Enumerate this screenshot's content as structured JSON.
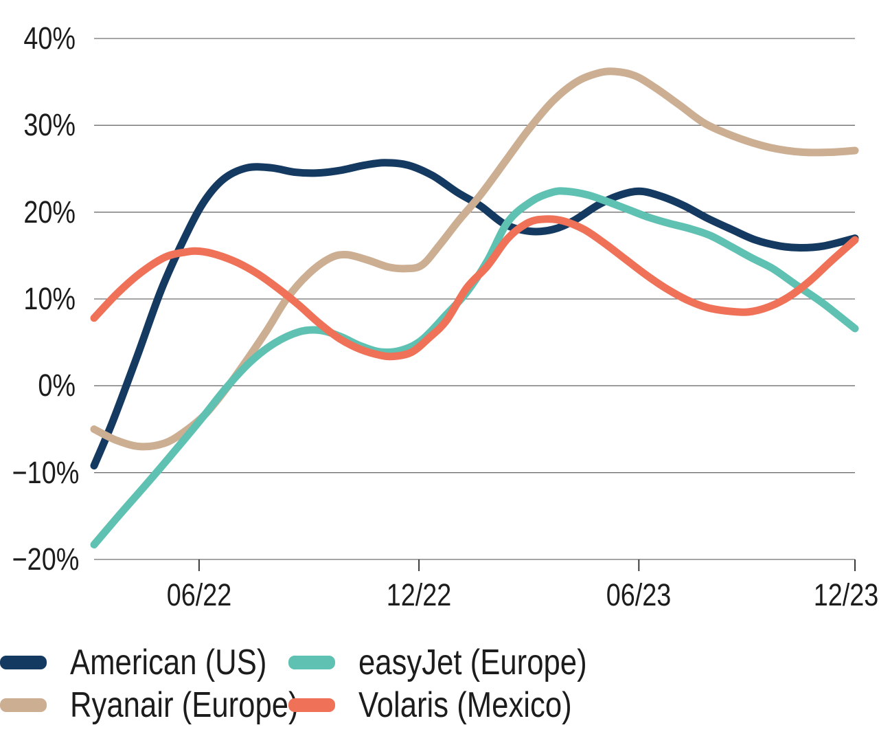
{
  "chart_data": {
    "type": "line",
    "title": "",
    "xlabel": "",
    "ylabel": "",
    "ylim": [
      -20,
      40
    ],
    "grid": "horizontal gridlines only",
    "legend_position": "bottom-left, two columns, two rows",
    "y_ticks": [
      {
        "label": "40%",
        "value": 40
      },
      {
        "label": "30%",
        "value": 30
      },
      {
        "label": "20%",
        "value": 20
      },
      {
        "label": "10%",
        "value": 10
      },
      {
        "label": "0%",
        "value": 0
      },
      {
        "label": "−10%",
        "value": -10
      },
      {
        "label": "−20%",
        "value": -20
      }
    ],
    "x_ticks": [
      {
        "label": "06/22",
        "pos": 0.138
      },
      {
        "label": "12/22",
        "pos": 0.427
      },
      {
        "label": "06/23",
        "pos": 0.716
      },
      {
        "label": "12/23",
        "pos": 1.0
      }
    ],
    "series": [
      {
        "name": "American (US)",
        "color": "#153a61",
        "points": [
          [
            0.0,
            -9.2
          ],
          [
            0.025,
            -4.0
          ],
          [
            0.057,
            3.5
          ],
          [
            0.088,
            11.0
          ],
          [
            0.116,
            16.5
          ],
          [
            0.143,
            21.0
          ],
          [
            0.17,
            23.8
          ],
          [
            0.201,
            25.1
          ],
          [
            0.233,
            25.1
          ],
          [
            0.264,
            24.6
          ],
          [
            0.292,
            24.5
          ],
          [
            0.323,
            24.8
          ],
          [
            0.355,
            25.4
          ],
          [
            0.382,
            25.7
          ],
          [
            0.413,
            25.4
          ],
          [
            0.445,
            24.2
          ],
          [
            0.477,
            22.3
          ],
          [
            0.508,
            20.7
          ],
          [
            0.54,
            18.6
          ],
          [
            0.573,
            17.8
          ],
          [
            0.603,
            18.0
          ],
          [
            0.63,
            19.0
          ],
          [
            0.662,
            20.8
          ],
          [
            0.689,
            21.9
          ],
          [
            0.716,
            22.4
          ],
          [
            0.743,
            21.9
          ],
          [
            0.774,
            20.8
          ],
          [
            0.806,
            19.3
          ],
          [
            0.838,
            18.0
          ],
          [
            0.869,
            16.8
          ],
          [
            0.901,
            16.1
          ],
          [
            0.928,
            15.9
          ],
          [
            0.959,
            16.1
          ],
          [
            1.0,
            17.0
          ]
        ]
      },
      {
        "name": "Ryanair (Europe)",
        "color": "#ccae92",
        "points": [
          [
            0.0,
            -5.0
          ],
          [
            0.03,
            -6.3
          ],
          [
            0.061,
            -7.0
          ],
          [
            0.093,
            -6.6
          ],
          [
            0.12,
            -5.2
          ],
          [
            0.147,
            -3.2
          ],
          [
            0.174,
            -0.3
          ],
          [
            0.201,
            3.0
          ],
          [
            0.228,
            6.5
          ],
          [
            0.253,
            10.0
          ],
          [
            0.282,
            12.9
          ],
          [
            0.31,
            14.7
          ],
          [
            0.332,
            15.1
          ],
          [
            0.359,
            14.5
          ],
          [
            0.386,
            13.7
          ],
          [
            0.409,
            13.5
          ],
          [
            0.431,
            13.9
          ],
          [
            0.454,
            16.2
          ],
          [
            0.479,
            19.0
          ],
          [
            0.508,
            22.0
          ],
          [
            0.54,
            25.8
          ],
          [
            0.571,
            29.5
          ],
          [
            0.603,
            32.8
          ],
          [
            0.634,
            35.0
          ],
          [
            0.662,
            36.0
          ],
          [
            0.684,
            36.2
          ],
          [
            0.711,
            35.7
          ],
          [
            0.738,
            34.3
          ],
          [
            0.77,
            32.3
          ],
          [
            0.801,
            30.3
          ],
          [
            0.833,
            29.0
          ],
          [
            0.865,
            28.0
          ],
          [
            0.896,
            27.3
          ],
          [
            0.932,
            26.9
          ],
          [
            0.968,
            26.9
          ],
          [
            1.0,
            27.1
          ]
        ]
      },
      {
        "name": "easyJet (Europe)",
        "color": "#5ec1b2",
        "points": [
          [
            0.0,
            -18.3
          ],
          [
            0.034,
            -14.8
          ],
          [
            0.07,
            -11.2
          ],
          [
            0.106,
            -7.5
          ],
          [
            0.143,
            -3.6
          ],
          [
            0.174,
            -0.2
          ],
          [
            0.206,
            2.8
          ],
          [
            0.237,
            4.9
          ],
          [
            0.269,
            6.2
          ],
          [
            0.296,
            6.4
          ],
          [
            0.323,
            5.7
          ],
          [
            0.35,
            4.6
          ],
          [
            0.377,
            3.9
          ],
          [
            0.404,
            4.1
          ],
          [
            0.431,
            5.3
          ],
          [
            0.463,
            8.2
          ],
          [
            0.49,
            10.8
          ],
          [
            0.517,
            14.4
          ],
          [
            0.544,
            18.9
          ],
          [
            0.576,
            21.3
          ],
          [
            0.603,
            22.3
          ],
          [
            0.621,
            22.4
          ],
          [
            0.648,
            22.0
          ],
          [
            0.675,
            21.2
          ],
          [
            0.702,
            20.3
          ],
          [
            0.729,
            19.4
          ],
          [
            0.756,
            18.7
          ],
          [
            0.783,
            18.1
          ],
          [
            0.81,
            17.3
          ],
          [
            0.838,
            16.0
          ],
          [
            0.865,
            14.7
          ],
          [
            0.892,
            13.5
          ],
          [
            0.923,
            11.6
          ],
          [
            0.955,
            9.7
          ],
          [
            0.977,
            8.2
          ],
          [
            1.0,
            6.6
          ]
        ]
      },
      {
        "name": "Volaris (Mexico)",
        "color": "#ee7158",
        "points": [
          [
            0.0,
            7.8
          ],
          [
            0.03,
            10.6
          ],
          [
            0.061,
            13.0
          ],
          [
            0.093,
            14.8
          ],
          [
            0.12,
            15.4
          ],
          [
            0.138,
            15.5
          ],
          [
            0.161,
            15.1
          ],
          [
            0.188,
            14.2
          ],
          [
            0.215,
            12.9
          ],
          [
            0.242,
            11.2
          ],
          [
            0.269,
            9.3
          ],
          [
            0.296,
            7.2
          ],
          [
            0.323,
            5.4
          ],
          [
            0.35,
            4.2
          ],
          [
            0.377,
            3.5
          ],
          [
            0.395,
            3.4
          ],
          [
            0.418,
            3.9
          ],
          [
            0.44,
            5.5
          ],
          [
            0.463,
            7.5
          ],
          [
            0.49,
            11.3
          ],
          [
            0.517,
            13.8
          ],
          [
            0.544,
            17.0
          ],
          [
            0.571,
            18.8
          ],
          [
            0.594,
            19.2
          ],
          [
            0.616,
            19.0
          ],
          [
            0.644,
            18.0
          ],
          [
            0.671,
            16.4
          ],
          [
            0.698,
            14.6
          ],
          [
            0.725,
            12.8
          ],
          [
            0.752,
            11.2
          ],
          [
            0.779,
            9.9
          ],
          [
            0.806,
            9.0
          ],
          [
            0.833,
            8.6
          ],
          [
            0.86,
            8.5
          ],
          [
            0.887,
            9.1
          ],
          [
            0.914,
            10.3
          ],
          [
            0.941,
            12.1
          ],
          [
            0.968,
            14.3
          ],
          [
            1.0,
            16.8
          ]
        ]
      }
    ]
  },
  "legend": {
    "items": [
      {
        "label": "American (US)",
        "color": "#153a61",
        "row": 0,
        "col": 0
      },
      {
        "label": "easyJet (Europe)",
        "color": "#5ec1b2",
        "row": 0,
        "col": 1
      },
      {
        "label": "Ryanair (Europe)",
        "color": "#ccae92",
        "row": 1,
        "col": 0
      },
      {
        "label": "Volaris (Mexico)",
        "color": "#ee7158",
        "row": 1,
        "col": 1
      }
    ]
  },
  "style": {
    "gridline_color": "#6f6f6f",
    "tick_color": "#3a3a3a",
    "text_color": "#1c1c1c",
    "line_width": 11
  }
}
